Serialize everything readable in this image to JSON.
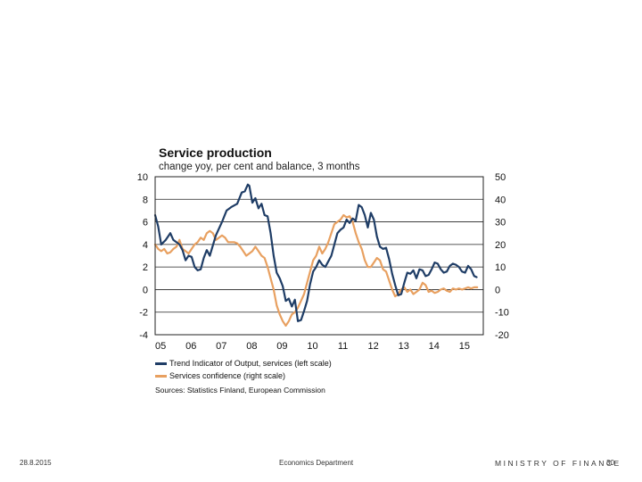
{
  "chart_data": {
    "type": "line",
    "title": "Service production",
    "subtitle": "change yoy, per cent and balance, 3 months",
    "x_ticks": [
      "05",
      "06",
      "07",
      "08",
      "09",
      "10",
      "11",
      "12",
      "13",
      "14",
      "15"
    ],
    "x_range": [
      2005.0,
      2015.8
    ],
    "y_left": {
      "range": [
        -4,
        10
      ],
      "ticks": [
        "10",
        "8",
        "6",
        "4",
        "2",
        "0",
        "-2",
        "-4"
      ],
      "tick_values": [
        10,
        8,
        6,
        4,
        2,
        0,
        -2,
        -4
      ]
    },
    "y_right": {
      "range": [
        -20,
        50
      ],
      "ticks": [
        "50",
        "40",
        "30",
        "20",
        "10",
        "0",
        "-10",
        "-20"
      ],
      "tick_values": [
        50,
        40,
        30,
        20,
        10,
        0,
        -10,
        -20
      ]
    },
    "grid": "horizontal",
    "series": [
      {
        "name": "Trend Indicator of Output, services (left scale)",
        "axis": "left",
        "color": "#1f3d66",
        "points": [
          [
            2005.0,
            6.6
          ],
          [
            2005.1,
            5.6
          ],
          [
            2005.2,
            4.0
          ],
          [
            2005.35,
            4.4
          ],
          [
            2005.5,
            5.0
          ],
          [
            2005.6,
            4.4
          ],
          [
            2005.8,
            4.0
          ],
          [
            2005.9,
            3.5
          ],
          [
            2006.0,
            2.6
          ],
          [
            2006.1,
            3.0
          ],
          [
            2006.2,
            2.9
          ],
          [
            2006.3,
            2.0
          ],
          [
            2006.4,
            1.7
          ],
          [
            2006.5,
            1.8
          ],
          [
            2006.6,
            2.8
          ],
          [
            2006.7,
            3.5
          ],
          [
            2006.8,
            3.0
          ],
          [
            2006.9,
            3.9
          ],
          [
            2007.0,
            4.8
          ],
          [
            2007.2,
            6.0
          ],
          [
            2007.35,
            7.0
          ],
          [
            2007.5,
            7.3
          ],
          [
            2007.7,
            7.6
          ],
          [
            2007.85,
            8.6
          ],
          [
            2007.95,
            8.7
          ],
          [
            2008.05,
            9.3
          ],
          [
            2008.1,
            9.2
          ],
          [
            2008.2,
            7.7
          ],
          [
            2008.3,
            8.1
          ],
          [
            2008.4,
            7.2
          ],
          [
            2008.5,
            7.6
          ],
          [
            2008.6,
            6.6
          ],
          [
            2008.7,
            6.5
          ],
          [
            2008.8,
            5.0
          ],
          [
            2008.9,
            3.0
          ],
          [
            2009.0,
            1.5
          ],
          [
            2009.1,
            1.0
          ],
          [
            2009.2,
            0.3
          ],
          [
            2009.3,
            -1.0
          ],
          [
            2009.4,
            -0.8
          ],
          [
            2009.5,
            -1.5
          ],
          [
            2009.6,
            -0.9
          ],
          [
            2009.7,
            -2.8
          ],
          [
            2009.8,
            -2.7
          ],
          [
            2009.9,
            -1.9
          ],
          [
            2010.0,
            -1.0
          ],
          [
            2010.1,
            0.5
          ],
          [
            2010.2,
            1.6
          ],
          [
            2010.3,
            2.0
          ],
          [
            2010.4,
            2.6
          ],
          [
            2010.5,
            2.2
          ],
          [
            2010.6,
            2.0
          ],
          [
            2010.7,
            2.5
          ],
          [
            2010.8,
            3.0
          ],
          [
            2010.9,
            4.0
          ],
          [
            2011.0,
            5.0
          ],
          [
            2011.1,
            5.3
          ],
          [
            2011.2,
            5.5
          ],
          [
            2011.3,
            6.2
          ],
          [
            2011.4,
            5.9
          ],
          [
            2011.5,
            6.3
          ],
          [
            2011.6,
            6.1
          ],
          [
            2011.7,
            7.5
          ],
          [
            2011.8,
            7.3
          ],
          [
            2011.9,
            6.6
          ],
          [
            2012.0,
            5.5
          ],
          [
            2012.1,
            6.8
          ],
          [
            2012.2,
            6.2
          ],
          [
            2012.3,
            4.7
          ],
          [
            2012.4,
            3.8
          ],
          [
            2012.5,
            3.6
          ],
          [
            2012.6,
            3.7
          ],
          [
            2012.7,
            2.7
          ],
          [
            2012.8,
            1.4
          ],
          [
            2012.9,
            0.4
          ],
          [
            2013.0,
            -0.5
          ],
          [
            2013.1,
            -0.4
          ],
          [
            2013.2,
            0.6
          ],
          [
            2013.3,
            1.5
          ],
          [
            2013.4,
            1.4
          ],
          [
            2013.5,
            1.7
          ],
          [
            2013.6,
            1.0
          ],
          [
            2013.7,
            1.8
          ],
          [
            2013.8,
            1.7
          ],
          [
            2013.9,
            1.2
          ],
          [
            2014.0,
            1.3
          ],
          [
            2014.1,
            1.8
          ],
          [
            2014.2,
            2.4
          ],
          [
            2014.3,
            2.3
          ],
          [
            2014.4,
            1.8
          ],
          [
            2014.5,
            1.5
          ],
          [
            2014.6,
            1.6
          ],
          [
            2014.7,
            2.1
          ],
          [
            2014.8,
            2.3
          ],
          [
            2014.9,
            2.2
          ],
          [
            2015.0,
            2.0
          ],
          [
            2015.1,
            1.6
          ],
          [
            2015.2,
            1.5
          ],
          [
            2015.3,
            2.1
          ],
          [
            2015.4,
            1.8
          ],
          [
            2015.5,
            1.2
          ],
          [
            2015.58,
            1.1
          ]
        ]
      },
      {
        "name": "Services confidence (right scale)",
        "axis": "right",
        "color": "#e8a060",
        "points": [
          [
            2005.0,
            20.0
          ],
          [
            2005.1,
            18.0
          ],
          [
            2005.2,
            17.0
          ],
          [
            2005.3,
            18.0
          ],
          [
            2005.4,
            16.0
          ],
          [
            2005.5,
            16.5
          ],
          [
            2005.6,
            18.0
          ],
          [
            2005.7,
            19.0
          ],
          [
            2005.8,
            22.0
          ],
          [
            2005.9,
            18.0
          ],
          [
            2006.0,
            17.0
          ],
          [
            2006.1,
            16.0
          ],
          [
            2006.2,
            18.0
          ],
          [
            2006.3,
            20.0
          ],
          [
            2006.4,
            21.0
          ],
          [
            2006.5,
            23.0
          ],
          [
            2006.6,
            22.0
          ],
          [
            2006.7,
            25.0
          ],
          [
            2006.8,
            26.0
          ],
          [
            2006.9,
            25.0
          ],
          [
            2007.0,
            22.0
          ],
          [
            2007.1,
            23.0
          ],
          [
            2007.2,
            24.0
          ],
          [
            2007.3,
            23.0
          ],
          [
            2007.4,
            21.0
          ],
          [
            2007.5,
            21.0
          ],
          [
            2007.6,
            21.0
          ],
          [
            2007.7,
            20.5
          ],
          [
            2007.8,
            19.0
          ],
          [
            2007.9,
            17.0
          ],
          [
            2008.0,
            15.0
          ],
          [
            2008.1,
            16.0
          ],
          [
            2008.2,
            17.0
          ],
          [
            2008.3,
            19.0
          ],
          [
            2008.4,
            17.0
          ],
          [
            2008.5,
            15.0
          ],
          [
            2008.6,
            14.0
          ],
          [
            2008.7,
            10.0
          ],
          [
            2008.8,
            5.0
          ],
          [
            2008.9,
            0.0
          ],
          [
            2009.0,
            -7.0
          ],
          [
            2009.1,
            -11.0
          ],
          [
            2009.2,
            -14.0
          ],
          [
            2009.3,
            -16.0
          ],
          [
            2009.4,
            -14.0
          ],
          [
            2009.5,
            -11.0
          ],
          [
            2009.6,
            -10.0
          ],
          [
            2009.7,
            -8.0
          ],
          [
            2009.8,
            -5.0
          ],
          [
            2009.9,
            -2.0
          ],
          [
            2010.0,
            3.0
          ],
          [
            2010.1,
            8.0
          ],
          [
            2010.2,
            13.0
          ],
          [
            2010.3,
            15.0
          ],
          [
            2010.4,
            19.0
          ],
          [
            2010.5,
            16.0
          ],
          [
            2010.6,
            18.0
          ],
          [
            2010.7,
            21.0
          ],
          [
            2010.8,
            25.0
          ],
          [
            2010.9,
            29.0
          ],
          [
            2011.0,
            30.0
          ],
          [
            2011.1,
            31.0
          ],
          [
            2011.2,
            33.0
          ],
          [
            2011.3,
            32.0
          ],
          [
            2011.4,
            32.5
          ],
          [
            2011.5,
            30.0
          ],
          [
            2011.6,
            25.0
          ],
          [
            2011.7,
            21.0
          ],
          [
            2011.8,
            18.0
          ],
          [
            2011.9,
            13.0
          ],
          [
            2012.0,
            10.0
          ],
          [
            2012.1,
            10.0
          ],
          [
            2012.2,
            12.0
          ],
          [
            2012.3,
            14.0
          ],
          [
            2012.4,
            13.0
          ],
          [
            2012.5,
            9.0
          ],
          [
            2012.6,
            8.0
          ],
          [
            2012.7,
            4.0
          ],
          [
            2012.8,
            0.0
          ],
          [
            2012.9,
            -3.0
          ],
          [
            2013.0,
            -2.0
          ],
          [
            2013.1,
            0.0
          ],
          [
            2013.2,
            1.0
          ],
          [
            2013.3,
            -1.0
          ],
          [
            2013.4,
            0.0
          ],
          [
            2013.5,
            -2.0
          ],
          [
            2013.6,
            -1.0
          ],
          [
            2013.7,
            0.0
          ],
          [
            2013.8,
            3.0
          ],
          [
            2013.9,
            2.0
          ],
          [
            2014.0,
            -1.0
          ],
          [
            2014.1,
            -0.5
          ],
          [
            2014.2,
            -1.5
          ],
          [
            2014.3,
            -1.0
          ],
          [
            2014.4,
            0.0
          ],
          [
            2014.5,
            0.5
          ],
          [
            2014.6,
            -0.5
          ],
          [
            2014.7,
            -1.0
          ],
          [
            2014.8,
            0.5
          ],
          [
            2014.9,
            0.0
          ],
          [
            2015.0,
            0.5
          ],
          [
            2015.1,
            0.0
          ],
          [
            2015.2,
            0.5
          ],
          [
            2015.3,
            1.0
          ],
          [
            2015.4,
            0.5
          ],
          [
            2015.5,
            1.0
          ],
          [
            2015.6,
            1.0
          ]
        ]
      }
    ],
    "source": "Sources: Statistics Finland, European Commission"
  },
  "footer": {
    "date": "28.8.2015",
    "department": "Economics Department",
    "ministry": "MINISTRY OF FINANCE",
    "page_number": "30"
  }
}
